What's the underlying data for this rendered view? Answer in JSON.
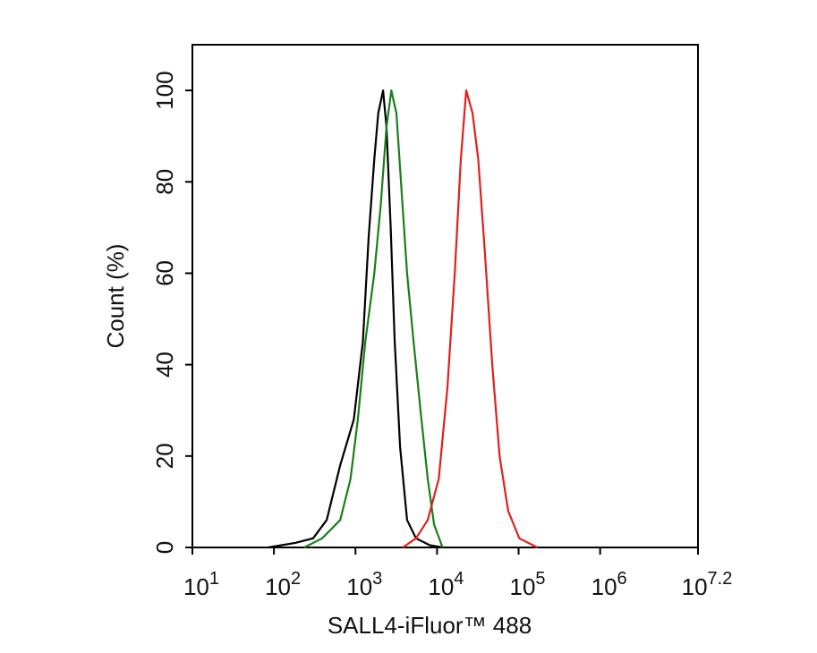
{
  "chart_data": {
    "type": "line",
    "xlabel": "SALL4-iFluor™ 488",
    "ylabel": "Count  (%)",
    "xscale": "log",
    "xlim": [
      10,
      15848931.9
    ],
    "ylim": [
      0,
      110
    ],
    "xticks": [
      {
        "value": 10,
        "label": "10",
        "sup": "1"
      },
      {
        "value": 100,
        "label": "10",
        "sup": "2"
      },
      {
        "value": 1000,
        "label": "10",
        "sup": "3"
      },
      {
        "value": 10000,
        "label": "10",
        "sup": "4"
      },
      {
        "value": 100000,
        "label": "10",
        "sup": "5"
      },
      {
        "value": 1000000,
        "label": "10",
        "sup": "6"
      },
      {
        "value": 15848931.9,
        "label": "10",
        "sup": "7.2"
      }
    ],
    "yticks": [
      0,
      20,
      40,
      60,
      80,
      100
    ],
    "series": [
      {
        "color": "#000000",
        "x": [
          85,
          182,
          302,
          444,
          650,
          955,
          1230,
          1450,
          1700,
          1900,
          2180,
          2400,
          2700,
          3030,
          3520,
          4290,
          5530,
          8100,
          11700
        ],
        "values": [
          0,
          1,
          2,
          6,
          18,
          28,
          45,
          68,
          85,
          95,
          100,
          92,
          70,
          45,
          22,
          6,
          2,
          0.5,
          0
        ]
      },
      {
        "color": "#1a7f1a",
        "x": [
          235,
          390,
          650,
          870,
          1070,
          1320,
          1700,
          2040,
          2400,
          2750,
          3180,
          3610,
          4290,
          5160,
          6270,
          7700,
          9200,
          11700
        ],
        "values": [
          0,
          2,
          6,
          15,
          28,
          45,
          60,
          75,
          92,
          100,
          95,
          80,
          60,
          45,
          30,
          15,
          5,
          0
        ]
      },
      {
        "color": "#e02020",
        "x": [
          3800,
          5530,
          7700,
          10500,
          13400,
          16500,
          19600,
          22800,
          27300,
          32000,
          38500,
          47500,
          58500,
          74600,
          102000,
          170000
        ],
        "values": [
          0,
          2,
          6,
          15,
          35,
          60,
          85,
          100,
          95,
          85,
          65,
          40,
          20,
          8,
          2,
          0
        ]
      }
    ]
  }
}
